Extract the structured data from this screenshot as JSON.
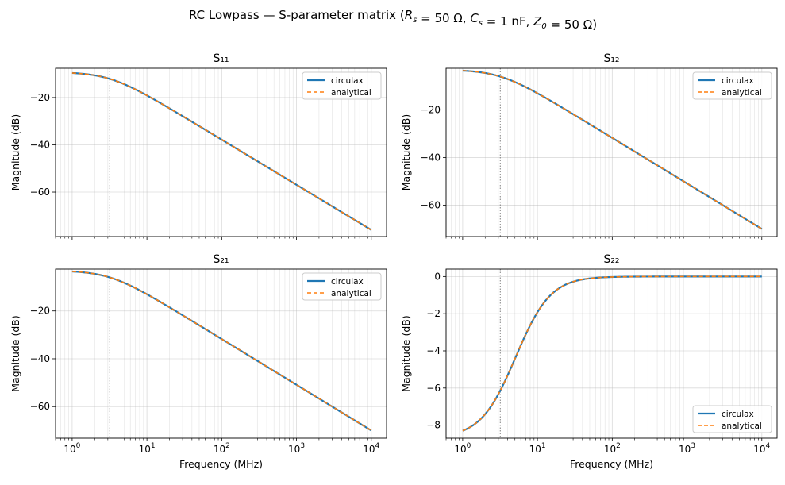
{
  "figure": {
    "suptitle": "RC Lowpass — S-parameter matrix  (R",
    "suptitle_parts": [
      {
        "t": "RC Lowpass — S-parameter matrix  (",
        "italic": false
      },
      {
        "t": "R",
        "italic": true,
        "sub": "s"
      },
      {
        "t": " = 50 Ω, ",
        "italic": false
      },
      {
        "t": "C",
        "italic": true,
        "sub": "s"
      },
      {
        "t": " = 1 nF, ",
        "italic": false
      },
      {
        "t": "Z",
        "italic": true,
        "sub": "0"
      },
      {
        "t": " = 50 Ω)",
        "italic": false
      }
    ],
    "xlabel": "Frequency (MHz)",
    "ylabel": "Magnitude (dB)",
    "cutoff_mhz": 3.183,
    "colors": {
      "circulax": "#1f77b4",
      "analytical": "#ff7f0e",
      "grid": "#b0b0b0",
      "cutoff": "#808080"
    }
  },
  "chart_data": [
    {
      "type": "line",
      "title": "S₁₁",
      "xscale": "log",
      "xlim": [
        0.6,
        16000
      ],
      "ylim": [
        -78.8,
        -7.6
      ],
      "yticks": [
        -20,
        -40,
        -60
      ],
      "xticks": [
        1,
        10,
        100,
        1000,
        10000
      ],
      "xtick_labels_shown": false,
      "xlabel": "",
      "ylabel": "Magnitude (dB)",
      "legend": {
        "location": "upper right",
        "entries": [
          "circulax",
          "analytical"
        ]
      },
      "curve": "s11",
      "x_range_mhz": [
        1,
        10000
      ],
      "y_at_1mhz": -9.6,
      "y_at_10000mhz": -76.0
    },
    {
      "type": "line",
      "title": "S₁₂",
      "xscale": "log",
      "xlim": [
        0.6,
        16000
      ],
      "ylim": [
        -73.2,
        -2.5
      ],
      "yticks": [
        -20,
        -40,
        -60
      ],
      "xticks": [
        1,
        10,
        100,
        1000,
        10000
      ],
      "xtick_labels_shown": false,
      "xlabel": "",
      "ylabel": "Magnitude (dB)",
      "legend": {
        "location": "upper right",
        "entries": [
          "circulax",
          "analytical"
        ]
      },
      "curve": "s21",
      "x_range_mhz": [
        1,
        10000
      ],
      "y_at_1mhz": -3.5,
      "y_at_10000mhz": -70.0
    },
    {
      "type": "line",
      "title": "S₂₁",
      "xscale": "log",
      "xlim": [
        0.6,
        16000
      ],
      "ylim": [
        -73.2,
        -2.5
      ],
      "yticks": [
        -20,
        -40,
        -60
      ],
      "xticks": [
        1,
        10,
        100,
        1000,
        10000
      ],
      "xtick_labels_shown": true,
      "xlabel": "Frequency (MHz)",
      "ylabel": "Magnitude (dB)",
      "legend": {
        "location": "upper right",
        "entries": [
          "circulax",
          "analytical"
        ]
      },
      "curve": "s21",
      "x_range_mhz": [
        1,
        10000
      ],
      "y_at_1mhz": -3.5,
      "y_at_10000mhz": -70.0
    },
    {
      "type": "line",
      "title": "S₂₂",
      "xscale": "log",
      "xlim": [
        0.6,
        16000
      ],
      "ylim": [
        -8.7,
        0.4
      ],
      "yticks": [
        0,
        -2,
        -4,
        -6,
        -8
      ],
      "xticks": [
        1,
        10,
        100,
        1000,
        10000
      ],
      "xtick_labels_shown": true,
      "xlabel": "Frequency (MHz)",
      "ylabel": "Magnitude (dB)",
      "legend": {
        "location": "lower right",
        "entries": [
          "circulax",
          "analytical"
        ]
      },
      "curve": "s22",
      "x_range_mhz": [
        1,
        10000
      ],
      "y_at_1mhz": -8.3,
      "y_at_10000mhz": 0.0
    }
  ]
}
